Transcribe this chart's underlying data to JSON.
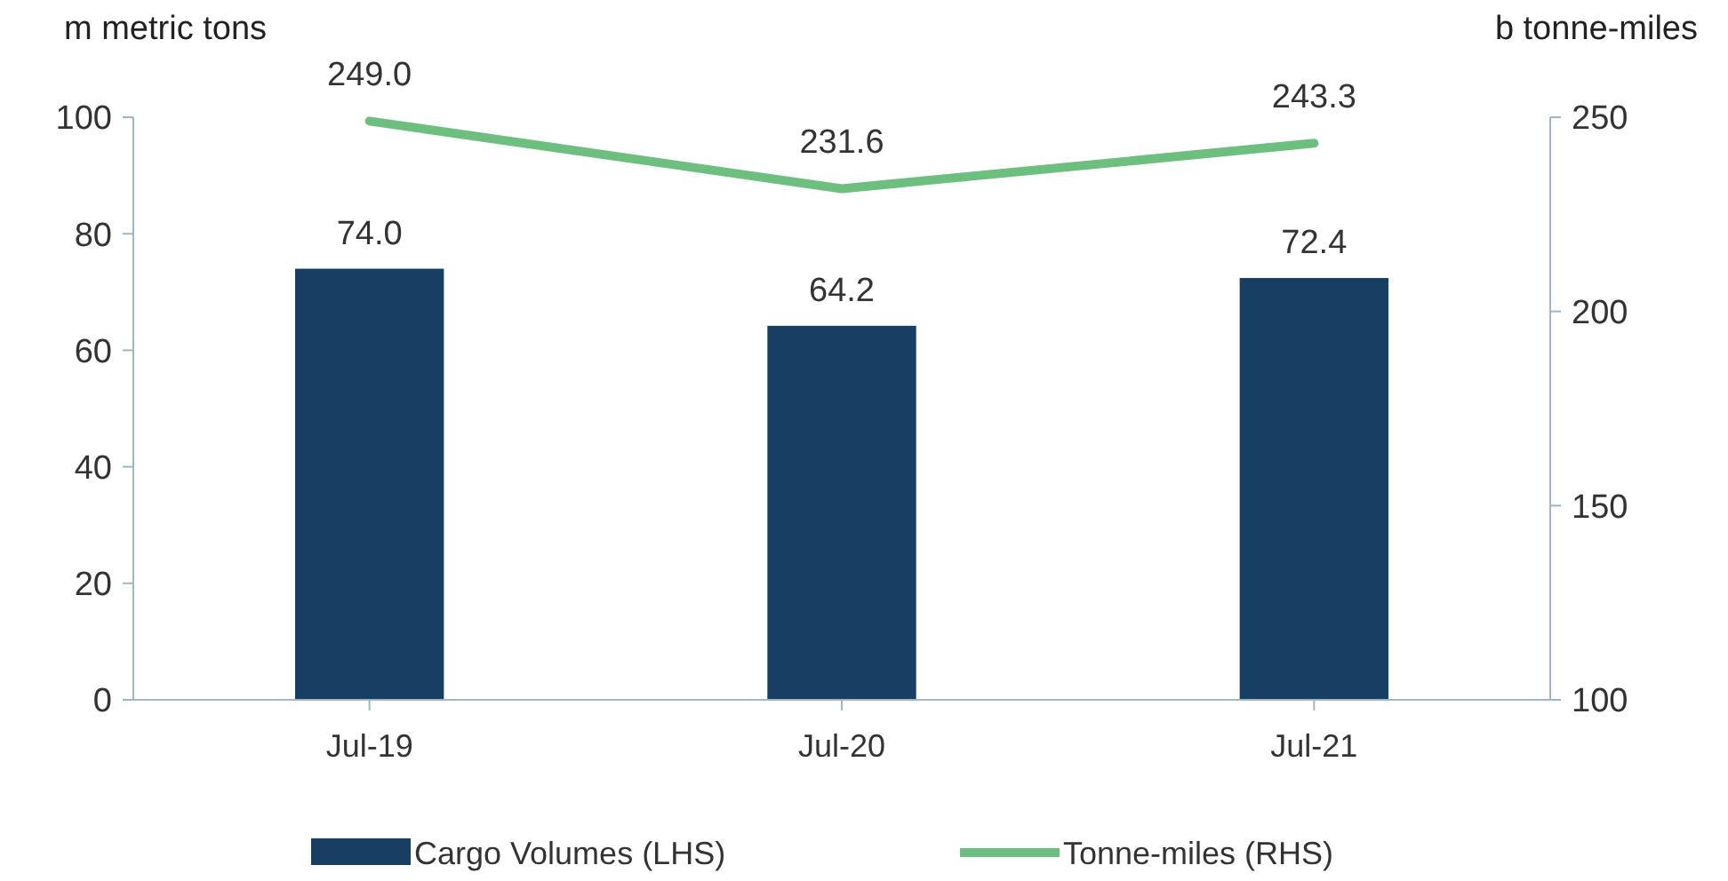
{
  "chart_data": {
    "type": "bar",
    "ylabel": "m metric tons",
    "y2label": "b tonne-miles",
    "categories": [
      "Jul-19",
      "Jul-20",
      "Jul-21"
    ],
    "series": [
      {
        "name": "Cargo Volumes (LHS)",
        "color": "#173e63",
        "values": [
          74.0,
          64.2,
          72.4
        ],
        "value_labels": [
          "74.0",
          "64.2",
          "72.4"
        ]
      },
      {
        "name": "Tonne-miles (RHS)",
        "type": "line",
        "axis": "y2",
        "color": "#6dbf80",
        "values": [
          249.0,
          231.6,
          243.3
        ],
        "value_labels": [
          "249.0",
          "231.6",
          "243.3"
        ]
      }
    ],
    "ylim": [
      0,
      100
    ],
    "yticks": [
      0,
      20,
      40,
      60,
      80,
      100
    ],
    "y2lim": [
      100,
      250
    ],
    "y2ticks": [
      100,
      150,
      200,
      250
    ],
    "legend": "bottom",
    "grid": false,
    "marker": "none",
    "line_style": "solid"
  }
}
